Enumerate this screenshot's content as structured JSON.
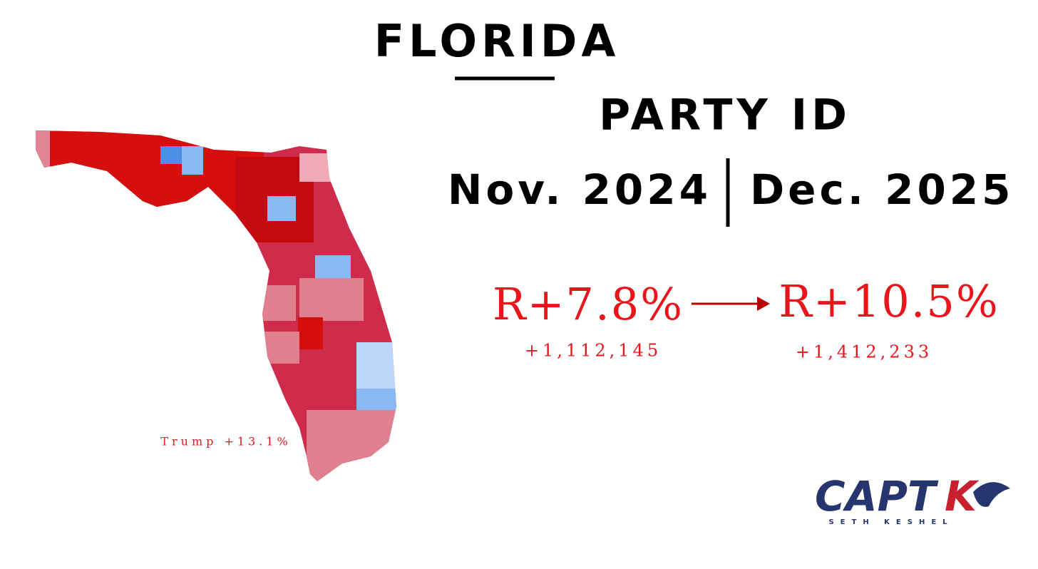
{
  "header": {
    "title": "FLORIDA",
    "subtitle": "PARTY ID"
  },
  "periods": {
    "left": "Nov. 2024",
    "right": "Dec. 2025"
  },
  "margins": {
    "left": {
      "value": "R+7.8%",
      "count": "+1,112,145"
    },
    "right": {
      "value": "R+10.5%",
      "count": "+1,412,233"
    }
  },
  "map": {
    "caption": "Trump +13.1%"
  },
  "logo": {
    "main": "CAPT",
    "accent": "K",
    "tagline": "SETH KESHEL"
  }
}
